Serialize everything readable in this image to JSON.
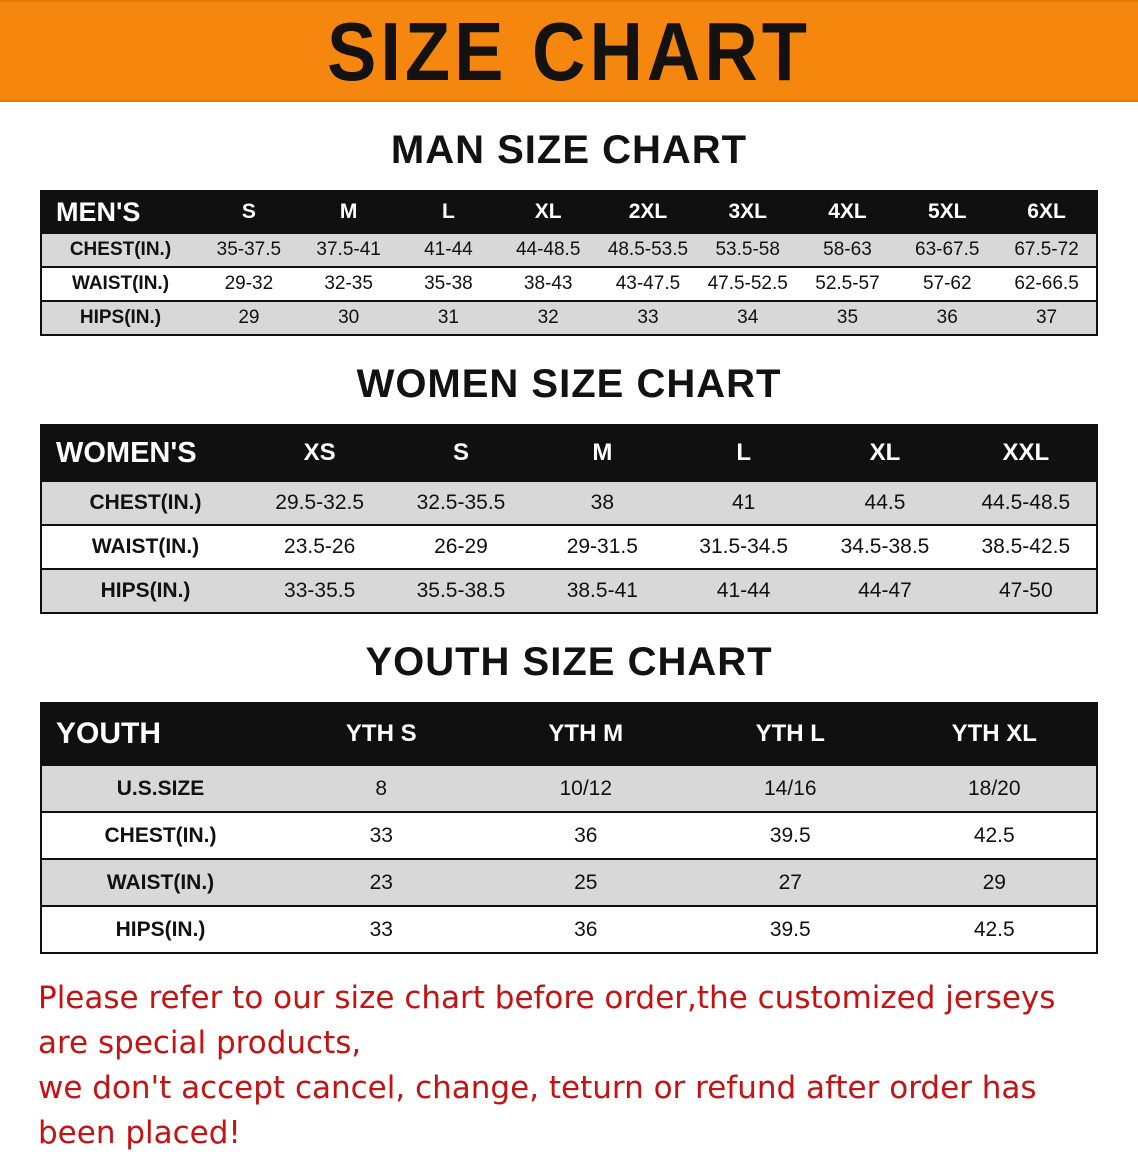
{
  "banner": {
    "title": "SIZE CHART"
  },
  "colors": {
    "banner_orange": "#f5870f",
    "header_black": "#101010",
    "row_gray": "#d8d8d8",
    "footer_red": "#c51212"
  },
  "sections": [
    {
      "heading": "MAN SIZE CHART",
      "table": {
        "header": [
          "MEN'S",
          "S",
          "M",
          "L",
          "XL",
          "2XL",
          "3XL",
          "4XL",
          "5XL",
          "6XL"
        ],
        "rows": [
          {
            "label": "CHEST(IN.)",
            "values": [
              "35-37.5",
              "37.5-41",
              "41-44",
              "44-48.5",
              "48.5-53.5",
              "53.5-58",
              "58-63",
              "63-67.5",
              "67.5-72"
            ]
          },
          {
            "label": "WAIST(IN.)",
            "values": [
              "29-32",
              "32-35",
              "35-38",
              "38-43",
              "43-47.5",
              "47.5-52.5",
              "52.5-57",
              "57-62",
              "62-66.5"
            ]
          },
          {
            "label": "HIPS(IN.)",
            "values": [
              "29",
              "30",
              "31",
              "32",
              "33",
              "34",
              "35",
              "36",
              "37"
            ]
          }
        ]
      }
    },
    {
      "heading": "WOMEN SIZE CHART",
      "table": {
        "header": [
          "WOMEN'S",
          "XS",
          "S",
          "M",
          "L",
          "XL",
          "XXL"
        ],
        "rows": [
          {
            "label": "CHEST(IN.)",
            "values": [
              "29.5-32.5",
              "32.5-35.5",
              "38",
              "41",
              "44.5",
              "44.5-48.5"
            ]
          },
          {
            "label": "WAIST(IN.)",
            "values": [
              "23.5-26",
              "26-29",
              "29-31.5",
              "31.5-34.5",
              "34.5-38.5",
              "38.5-42.5"
            ]
          },
          {
            "label": "HIPS(IN.)",
            "values": [
              "33-35.5",
              "35.5-38.5",
              "38.5-41",
              "41-44",
              "44-47",
              "47-50"
            ]
          }
        ]
      }
    },
    {
      "heading": "YOUTH SIZE CHART",
      "table": {
        "header": [
          "YOUTH",
          "YTH S",
          "YTH M",
          "YTH L",
          "YTH XL"
        ],
        "rows": [
          {
            "label": "U.S.SIZE",
            "values": [
              "8",
              "10/12",
              "14/16",
              "18/20"
            ]
          },
          {
            "label": "CHEST(IN.)",
            "values": [
              "33",
              "36",
              "39.5",
              "42.5"
            ]
          },
          {
            "label": "WAIST(IN.)",
            "values": [
              "23",
              "25",
              "27",
              "29"
            ]
          },
          {
            "label": "HIPS(IN.)",
            "values": [
              "33",
              "36",
              "39.5",
              "42.5"
            ]
          }
        ]
      }
    }
  ],
  "footer": {
    "line1": "Please refer to our size chart before order,the customized jerseys are special products,",
    "line2": "we don't accept cancel, change, teturn or refund after order has been placed!"
  }
}
